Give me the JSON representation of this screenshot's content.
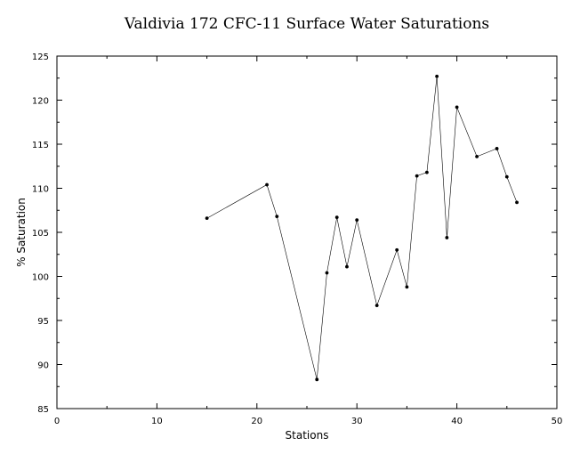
{
  "chart_data": {
    "type": "line",
    "title": "Valdivia 172 CFC-11 Surface Water Saturations",
    "xlabel": "Stations",
    "ylabel": "% Saturation",
    "xlim": [
      0,
      50
    ],
    "ylim": [
      85,
      125
    ],
    "xticks": [
      0,
      10,
      20,
      30,
      40,
      50
    ],
    "yticks": [
      85,
      90,
      95,
      100,
      105,
      110,
      115,
      120,
      125
    ],
    "grid": false,
    "series": [
      {
        "x": [
          15,
          21,
          22,
          26,
          27,
          28,
          29,
          30,
          32,
          34,
          35,
          36,
          37,
          38,
          39,
          40,
          42,
          44,
          45,
          46
        ],
        "y": [
          106.6,
          110.4,
          106.8,
          88.3,
          100.4,
          106.7,
          101.1,
          106.4,
          96.7,
          103.0,
          98.8,
          111.4,
          111.8,
          122.7,
          104.4,
          119.2,
          113.6,
          114.5,
          111.3,
          108.4
        ]
      }
    ],
    "colors": {
      "line": "#000000",
      "marker": "#000000",
      "axis": "#000000"
    }
  }
}
